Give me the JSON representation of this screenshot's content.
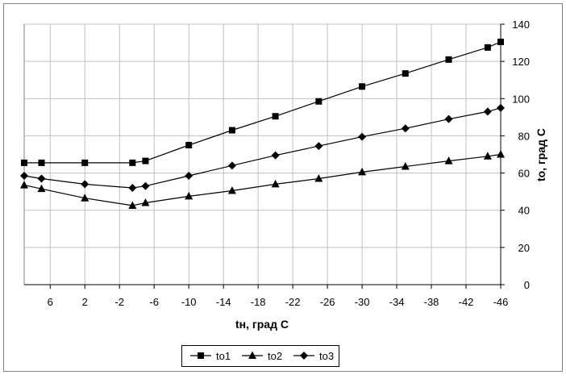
{
  "chart_data": {
    "type": "line",
    "xlabel": "tн, град С",
    "ylabel": "tо, град С",
    "xlim": [
      9,
      -46
    ],
    "ylim": [
      0,
      140
    ],
    "x_ticks": [
      6,
      2,
      -2,
      -6,
      -10,
      -14,
      -18,
      -22,
      -26,
      -30,
      -34,
      -38,
      -42,
      -46
    ],
    "x_tick_labels": [
      "6",
      "2",
      "-2",
      "-6",
      "-10",
      "-14",
      "-18",
      "-22",
      "-26",
      "-30",
      "-34",
      "-38",
      "-42",
      "-46"
    ],
    "y_ticks": [
      0,
      20,
      40,
      60,
      80,
      100,
      120,
      140
    ],
    "y_tick_labels": [
      "0",
      "20",
      "40",
      "60",
      "80",
      "100",
      "120",
      "140"
    ],
    "y_axis_side": "right",
    "grid": true,
    "legend_position": "bottom-center",
    "colors": {
      "series": "#000000",
      "grid": "#c0c0c0",
      "frame": "#808080"
    },
    "series": [
      {
        "name": "to1",
        "marker": "square",
        "points": [
          [
            9,
            65.5
          ],
          [
            7,
            65.5
          ],
          [
            2,
            65.5
          ],
          [
            -3.5,
            65.5
          ],
          [
            -5,
            66.5
          ],
          [
            -10,
            75
          ],
          [
            -15,
            83
          ],
          [
            -20,
            90.5
          ],
          [
            -25,
            98.5
          ],
          [
            -30,
            106.5
          ],
          [
            -35,
            113.5
          ],
          [
            -40,
            121
          ],
          [
            -44.5,
            127.5
          ],
          [
            -46,
            130.5
          ]
        ]
      },
      {
        "name": "to2",
        "marker": "triangle",
        "points": [
          [
            9,
            53.5
          ],
          [
            7,
            51.5
          ],
          [
            2,
            46.5
          ],
          [
            -3.5,
            42.5
          ],
          [
            -5,
            44
          ],
          [
            -10,
            47.5
          ],
          [
            -15,
            50.5
          ],
          [
            -20,
            54
          ],
          [
            -25,
            57
          ],
          [
            -30,
            60.5
          ],
          [
            -35,
            63.5
          ],
          [
            -40,
            66.5
          ],
          [
            -44.5,
            69
          ],
          [
            -46,
            70
          ]
        ]
      },
      {
        "name": "to3",
        "marker": "diamond",
        "points": [
          [
            9,
            58.5
          ],
          [
            7,
            57
          ],
          [
            2,
            54
          ],
          [
            -3.5,
            52
          ],
          [
            -5,
            53
          ],
          [
            -10,
            58.5
          ],
          [
            -15,
            64
          ],
          [
            -20,
            69.5
          ],
          [
            -25,
            74.5
          ],
          [
            -30,
            79.5
          ],
          [
            -35,
            84
          ],
          [
            -40,
            89
          ],
          [
            -44.5,
            93
          ],
          [
            -46,
            95
          ]
        ]
      }
    ]
  }
}
